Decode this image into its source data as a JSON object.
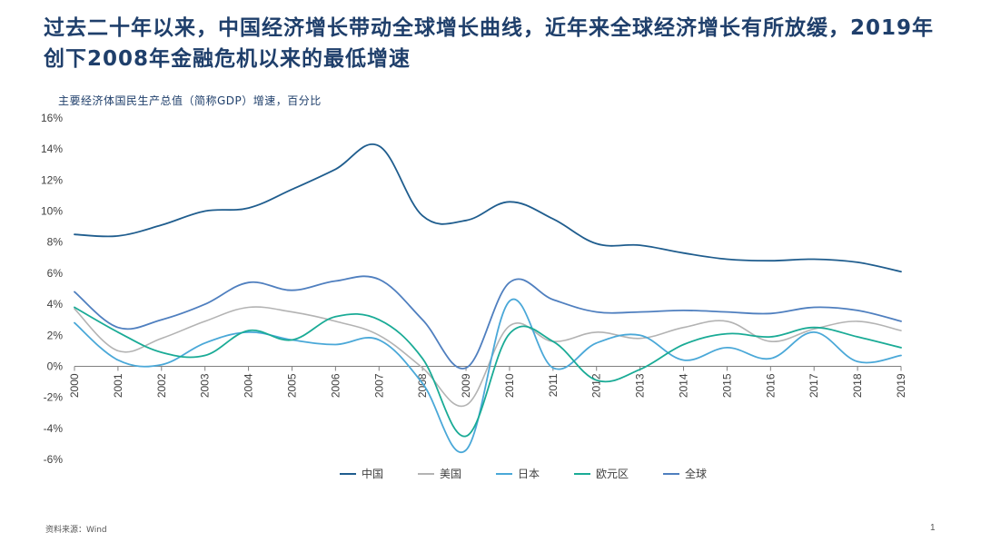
{
  "slide": {
    "title": "过去二十年以来，中国经济增长带动全球增长曲线，近年来全球经济增长有所放缓，2019年创下2008年金融危机以来的最低增速",
    "source": "资料来源：Wind",
    "page_number": "1"
  },
  "chart_data": {
    "type": "line",
    "title": "主要经济体国民生产总值（简称GDP）增速，百分比",
    "xlabel": "",
    "ylabel": "",
    "x": [
      "2000",
      "2001",
      "2002",
      "2003",
      "2004",
      "2005",
      "2006",
      "2007",
      "2008",
      "2009",
      "2010",
      "2011",
      "2012",
      "2013",
      "2014",
      "2015",
      "2016",
      "2017",
      "2018",
      "2019"
    ],
    "ylim": [
      -6,
      16
    ],
    "yticks": [
      -6,
      -4,
      -2,
      0,
      2,
      4,
      6,
      8,
      10,
      12,
      14,
      16
    ],
    "ytick_labels": [
      "-6%",
      "-4%",
      "-2%",
      "0%",
      "2%",
      "4%",
      "6%",
      "8%",
      "10%",
      "12%",
      "14%",
      "16%"
    ],
    "grid": false,
    "legend_position": "bottom",
    "series": [
      {
        "name": "中国",
        "color": "#1f5d8e",
        "values": [
          8.5,
          8.4,
          9.1,
          10.0,
          10.2,
          11.4,
          12.7,
          14.2,
          9.7,
          9.4,
          10.6,
          9.5,
          7.9,
          7.8,
          7.3,
          6.9,
          6.8,
          6.9,
          6.7,
          6.1
        ]
      },
      {
        "name": "美国",
        "color": "#b3b3b3",
        "values": [
          3.7,
          1.0,
          1.8,
          2.9,
          3.8,
          3.5,
          2.9,
          2.0,
          -0.1,
          -2.5,
          2.6,
          1.6,
          2.2,
          1.8,
          2.5,
          2.9,
          1.6,
          2.4,
          2.9,
          2.3
        ]
      },
      {
        "name": "日本",
        "color": "#4aa8d8",
        "values": [
          2.8,
          0.4,
          0.1,
          1.5,
          2.2,
          1.7,
          1.4,
          1.7,
          -1.1,
          -5.4,
          4.2,
          -0.1,
          1.5,
          2.0,
          0.4,
          1.2,
          0.5,
          2.2,
          0.3,
          0.7
        ]
      },
      {
        "name": "欧元区",
        "color": "#1aab96",
        "values": [
          3.8,
          2.2,
          0.9,
          0.7,
          2.3,
          1.7,
          3.2,
          3.0,
          0.5,
          -4.5,
          2.1,
          1.6,
          -0.9,
          -0.2,
          1.4,
          2.1,
          1.9,
          2.5,
          1.9,
          1.2
        ]
      },
      {
        "name": "全球",
        "color": "#4f7fbf",
        "values": [
          4.8,
          2.5,
          3.0,
          4.0,
          5.4,
          4.9,
          5.5,
          5.6,
          3.0,
          -0.1,
          5.4,
          4.3,
          3.5,
          3.5,
          3.6,
          3.5,
          3.4,
          3.8,
          3.6,
          2.9
        ]
      }
    ]
  }
}
